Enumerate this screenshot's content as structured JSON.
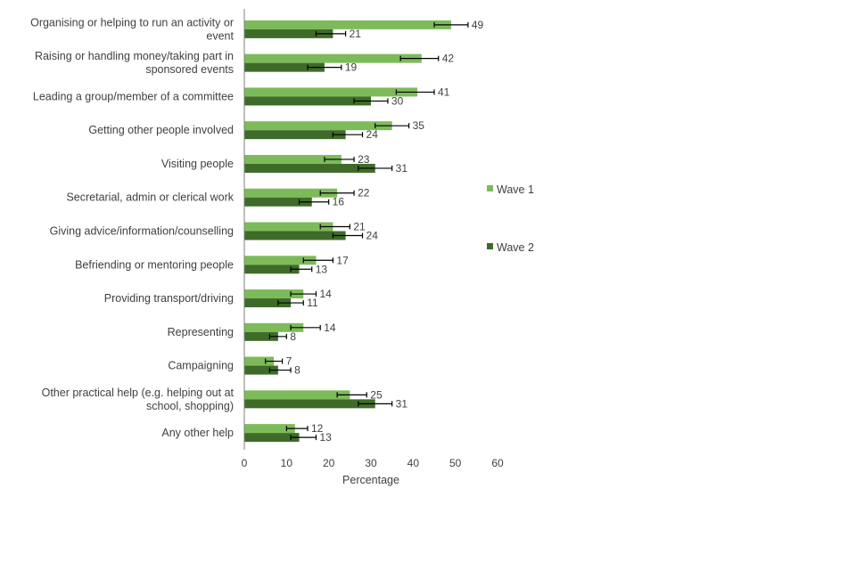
{
  "chart_data": {
    "type": "bar",
    "orientation": "horizontal",
    "title": "",
    "xlabel": "Percentage",
    "ylabel": "",
    "xlim": [
      0,
      60
    ],
    "xticks": [
      "0",
      "10",
      "20",
      "30",
      "40",
      "50",
      "60"
    ],
    "grid": false,
    "legend_position": "right",
    "categories": [
      [
        "Organising or helping to run an activity or",
        "event"
      ],
      [
        "Raising or handling money/taking part in",
        "sponsored events"
      ],
      [
        "Leading a group/member of a committee"
      ],
      [
        "Getting other people involved"
      ],
      [
        "Visiting people"
      ],
      [
        "Secretarial, admin or clerical work"
      ],
      [
        "Giving advice/information/counselling"
      ],
      [
        "Befriending or mentoring people"
      ],
      [
        "Providing transport/driving"
      ],
      [
        "Representing"
      ],
      [
        "Campaigning"
      ],
      [
        "Other practical help (e.g. helping out at",
        "school, shopping)"
      ],
      [
        "Any other help"
      ]
    ],
    "series": [
      {
        "name": "Wave 1",
        "color": "#7dbb5a",
        "values": [
          49,
          42,
          41,
          35,
          23,
          22,
          21,
          17,
          14,
          14,
          7,
          25,
          12
        ],
        "error_low": [
          45,
          37,
          36,
          31,
          19,
          18,
          18,
          14,
          11,
          11,
          5,
          22,
          10
        ],
        "error_high": [
          53,
          46,
          45,
          39,
          26,
          26,
          25,
          21,
          17,
          18,
          9,
          29,
          15
        ]
      },
      {
        "name": "Wave 2",
        "color": "#3f6b2a",
        "values": [
          21,
          19,
          30,
          24,
          31,
          16,
          24,
          13,
          11,
          8,
          8,
          31,
          13
        ],
        "error_low": [
          17,
          15,
          26,
          21,
          27,
          13,
          21,
          11,
          8,
          6,
          6,
          27,
          11
        ],
        "error_high": [
          24,
          23,
          34,
          28,
          35,
          20,
          28,
          16,
          14,
          10,
          11,
          35,
          17
        ]
      }
    ]
  }
}
